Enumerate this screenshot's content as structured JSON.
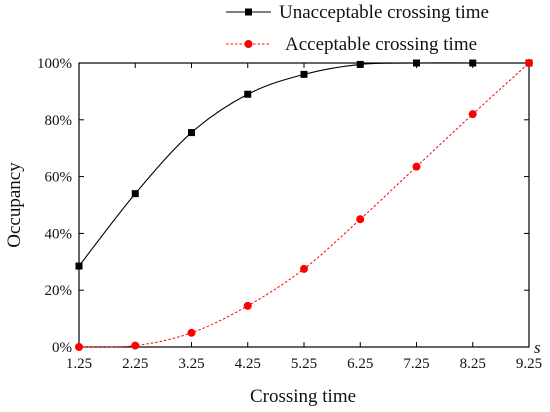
{
  "chart_data": {
    "type": "line",
    "title": "",
    "xlabel": "Crossing time",
    "ylabel": "Occupancy",
    "x_unit": "s",
    "x": [
      1.25,
      2.25,
      3.25,
      4.25,
      5.25,
      6.25,
      7.25,
      8.25,
      9.25
    ],
    "x_ticks": [
      "1.25",
      "2.25",
      "3.25",
      "4.25",
      "5.25",
      "6.25",
      "7.25",
      "8.25",
      "9.25"
    ],
    "xlim": [
      1.25,
      9.25
    ],
    "ylim": [
      0,
      100
    ],
    "y_ticks": [
      0,
      20,
      40,
      60,
      80,
      100
    ],
    "y_tick_labels": [
      "0%",
      "20%",
      "40%",
      "60%",
      "80%",
      "100%"
    ],
    "grid": false,
    "legend_position": "top-right",
    "series": [
      {
        "name": "Unacceptable crossing time",
        "color": "#000000",
        "marker": "square",
        "line_style": "solid",
        "values": [
          28.5,
          54,
          75.5,
          89,
          96,
          99.5,
          100,
          100,
          100
        ]
      },
      {
        "name": "Acceptable crossing time",
        "color": "#ff0000",
        "marker": "circle",
        "line_style": "dotted",
        "values": [
          0,
          0.5,
          5,
          14.5,
          27.5,
          45,
          63.5,
          82,
          100
        ]
      }
    ]
  }
}
